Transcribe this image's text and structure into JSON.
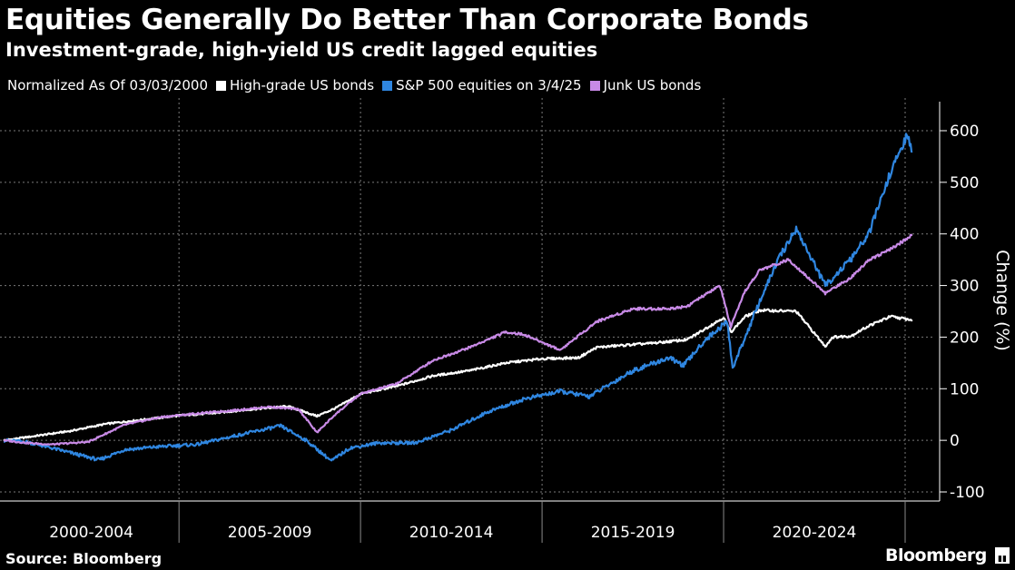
{
  "header": {
    "title": "Equities Generally Do Better Than Corporate Bonds",
    "subtitle": "Investment-grade, high-yield US credit lagged equities"
  },
  "legend": {
    "note": "Normalized As Of 03/03/2000"
  },
  "footer": {
    "source": "Source: Bloomberg",
    "brand": "Bloomberg"
  },
  "chart_data": {
    "type": "line",
    "title": "Equities Generally Do Better Than Corporate Bonds",
    "subtitle": "Investment-grade, high-yield US credit lagged equities",
    "note": "Normalized As Of 03/03/2000",
    "ylabel": "Change (%)",
    "ylim": [
      -100,
      650
    ],
    "yticks": [
      -100,
      0,
      100,
      200,
      300,
      400,
      500,
      600
    ],
    "xlim": [
      2000.17,
      2025.2
    ],
    "x_categories": [
      "2000-2004",
      "2005-2009",
      "2010-2014",
      "2015-2019",
      "2020-2024"
    ],
    "grid": true,
    "legend_position": "top-left",
    "series": [
      {
        "name": "High-grade US bonds",
        "color": "#ffffff",
        "points": [
          [
            2000.17,
            0
          ],
          [
            2001,
            8
          ],
          [
            2002,
            18
          ],
          [
            2003,
            32
          ],
          [
            2004,
            40
          ],
          [
            2005,
            48
          ],
          [
            2006,
            53
          ],
          [
            2007,
            60
          ],
          [
            2008,
            66
          ],
          [
            2008.8,
            47
          ],
          [
            2009.3,
            62
          ],
          [
            2010,
            90
          ],
          [
            2011,
            105
          ],
          [
            2012,
            125
          ],
          [
            2013,
            135
          ],
          [
            2014,
            150
          ],
          [
            2015,
            158
          ],
          [
            2016,
            160
          ],
          [
            2016.5,
            180
          ],
          [
            2017,
            183
          ],
          [
            2018,
            188
          ],
          [
            2019,
            195
          ],
          [
            2020,
            238
          ],
          [
            2020.2,
            210
          ],
          [
            2020.6,
            240
          ],
          [
            2021,
            252
          ],
          [
            2022,
            250
          ],
          [
            2022.8,
            182
          ],
          [
            2023,
            200
          ],
          [
            2023.5,
            202
          ],
          [
            2024,
            222
          ],
          [
            2024.6,
            240
          ],
          [
            2025.2,
            233
          ]
        ]
      },
      {
        "name": "S&P 500 equities on 3/4/25",
        "color": "#2f86e0",
        "points": [
          [
            2000.17,
            0
          ],
          [
            2000.8,
            -3
          ],
          [
            2001.5,
            -15
          ],
          [
            2002.8,
            -38
          ],
          [
            2003.5,
            -18
          ],
          [
            2004.5,
            -12
          ],
          [
            2005.5,
            -8
          ],
          [
            2006.5,
            8
          ],
          [
            2007.8,
            28
          ],
          [
            2008.5,
            0
          ],
          [
            2009.2,
            -40
          ],
          [
            2009.7,
            -15
          ],
          [
            2010.5,
            -5
          ],
          [
            2011.5,
            -5
          ],
          [
            2012.5,
            20
          ],
          [
            2013.5,
            55
          ],
          [
            2014.5,
            80
          ],
          [
            2015.5,
            95
          ],
          [
            2016.3,
            85
          ],
          [
            2017.5,
            135
          ],
          [
            2018.5,
            160
          ],
          [
            2018.9,
            145
          ],
          [
            2019.5,
            195
          ],
          [
            2020.1,
            230
          ],
          [
            2020.25,
            140
          ],
          [
            2021,
            270
          ],
          [
            2021.5,
            350
          ],
          [
            2022,
            410
          ],
          [
            2022.8,
            300
          ],
          [
            2023.5,
            350
          ],
          [
            2024,
            400
          ],
          [
            2024.6,
            520
          ],
          [
            2025.05,
            590
          ],
          [
            2025.2,
            560
          ]
        ]
      },
      {
        "name": "Junk US bonds",
        "color": "#c88ae6",
        "points": [
          [
            2000.17,
            0
          ],
          [
            2000.8,
            -5
          ],
          [
            2001.5,
            -8
          ],
          [
            2002.5,
            -3
          ],
          [
            2003.5,
            30
          ],
          [
            2004.5,
            45
          ],
          [
            2005.5,
            52
          ],
          [
            2006.5,
            58
          ],
          [
            2007.5,
            65
          ],
          [
            2008.3,
            60
          ],
          [
            2008.8,
            15
          ],
          [
            2009.3,
            50
          ],
          [
            2010,
            90
          ],
          [
            2011,
            110
          ],
          [
            2012,
            155
          ],
          [
            2013,
            180
          ],
          [
            2014,
            210
          ],
          [
            2014.5,
            205
          ],
          [
            2015.5,
            175
          ],
          [
            2016.5,
            230
          ],
          [
            2017.5,
            255
          ],
          [
            2018.5,
            255
          ],
          [
            2019,
            260
          ],
          [
            2019.9,
            300
          ],
          [
            2020.2,
            220
          ],
          [
            2020.6,
            290
          ],
          [
            2021,
            330
          ],
          [
            2021.8,
            350
          ],
          [
            2022.8,
            285
          ],
          [
            2023.5,
            315
          ],
          [
            2024,
            350
          ],
          [
            2024.6,
            370
          ],
          [
            2025.2,
            398
          ]
        ]
      }
    ]
  }
}
